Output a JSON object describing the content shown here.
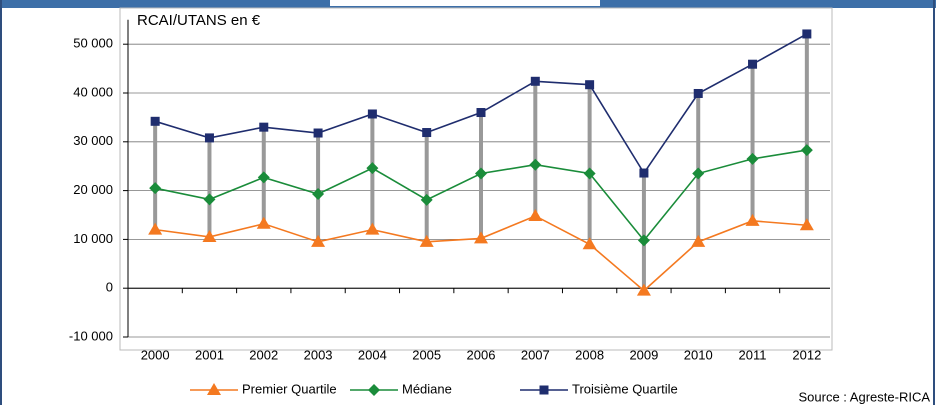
{
  "chart_data": {
    "type": "line",
    "y_label": "RCAI/UTANS en €",
    "source": "Source : Agreste-RICA",
    "categories": [
      "2000",
      "2001",
      "2002",
      "2003",
      "2004",
      "2005",
      "2006",
      "2007",
      "2008",
      "2009",
      "2010",
      "2011",
      "2012"
    ],
    "series": [
      {
        "name": "Premier Quartile",
        "color": "#f47920",
        "marker": "triangle",
        "values": [
          12000,
          10500,
          13200,
          9500,
          12000,
          9500,
          10200,
          14800,
          9000,
          -500,
          9500,
          13800,
          12900
        ]
      },
      {
        "name": "Médiane",
        "color": "#1a8c3a",
        "marker": "diamond",
        "values": [
          20500,
          18200,
          22700,
          19300,
          24600,
          18100,
          23500,
          25300,
          23500,
          9800,
          23500,
          26500,
          28300
        ]
      },
      {
        "name": "Troisième Quartile",
        "color": "#1f2d6e",
        "marker": "square",
        "values": [
          34200,
          30800,
          33000,
          31800,
          35700,
          31900,
          36000,
          42400,
          41700,
          23600,
          39900,
          45900,
          52100
        ]
      }
    ],
    "ylim": [
      -10000,
      55000
    ],
    "yticks": [
      {
        "value": -10000,
        "label": "-10 000"
      },
      0,
      {
        "value": 10000,
        "label": "10 000"
      },
      {
        "value": 20000,
        "label": "20 000"
      },
      {
        "value": 30000,
        "label": "30 000"
      },
      {
        "value": 40000,
        "label": "40 000"
      },
      {
        "value": 50000,
        "label": "50 000"
      }
    ],
    "grid": true,
    "range_bars": true
  }
}
